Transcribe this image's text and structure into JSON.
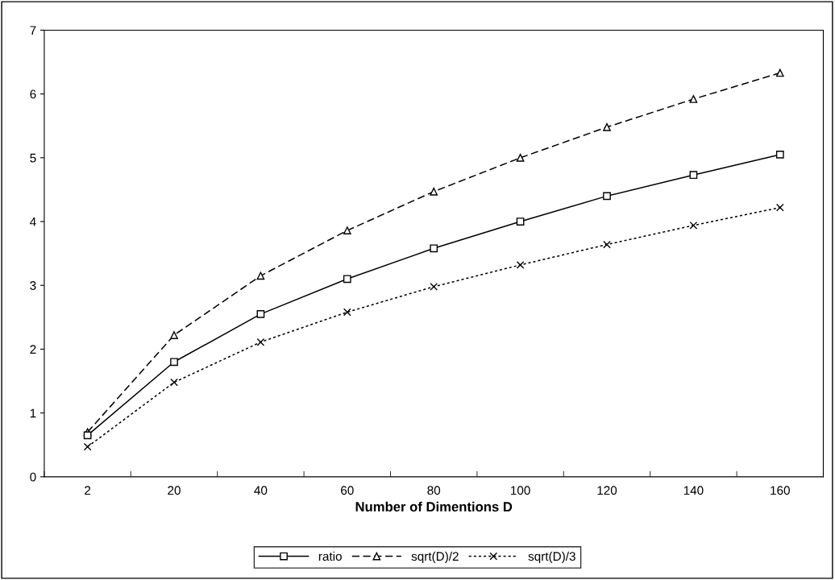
{
  "chart_data": {
    "type": "line",
    "xlabel": "Number of Dimentions D",
    "categories": [
      "2",
      "20",
      "40",
      "60",
      "80",
      "100",
      "120",
      "140",
      "160"
    ],
    "ylim": [
      0,
      7
    ],
    "yticks": [
      0,
      1,
      2,
      3,
      4,
      5,
      6,
      7
    ],
    "grid": false,
    "legend": "bottom",
    "series": [
      {
        "name": "ratio",
        "color": "#000000",
        "marker": "square",
        "line_style": "solid",
        "values": [
          0.65,
          1.8,
          2.55,
          3.1,
          3.58,
          4.0,
          4.4,
          4.73,
          5.05
        ]
      },
      {
        "name": "sqrt(D)/2",
        "color": "#000000",
        "marker": "triangle",
        "line_style": "dashed",
        "values": [
          0.7,
          2.22,
          3.15,
          3.86,
          4.47,
          5.0,
          5.48,
          5.92,
          6.33
        ]
      },
      {
        "name": "sqrt(D)/3",
        "color": "#000000",
        "marker": "cross",
        "line_style": "dotted",
        "values": [
          0.47,
          1.48,
          2.11,
          2.58,
          2.98,
          3.32,
          3.64,
          3.94,
          4.22
        ]
      }
    ]
  }
}
